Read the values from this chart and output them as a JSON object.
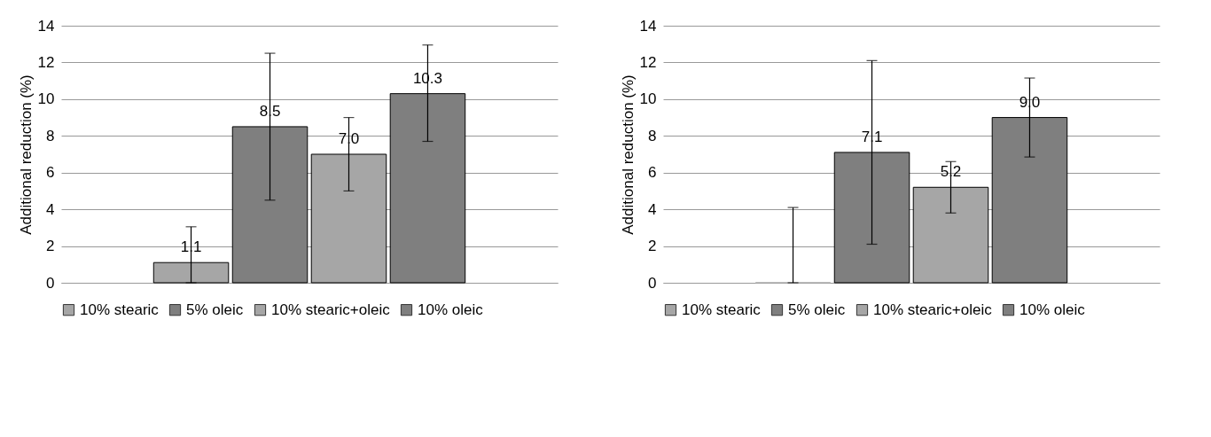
{
  "chart_data": [
    {
      "type": "bar",
      "ylabel": "Additional reduction (%)",
      "categories": [
        null
      ],
      "ylim": [
        0,
        14
      ],
      "yticks": [
        0,
        2,
        4,
        6,
        8,
        10,
        12,
        14
      ],
      "grid": "y",
      "legend": "bottom",
      "series": [
        {
          "name": "10% stearic",
          "color": "#a6a6a6",
          "values": [
            1.1
          ],
          "errors": [
            [
              0,
              3.05
            ]
          ],
          "value_labels": [
            "1.1"
          ]
        },
        {
          "name": "5% oleic",
          "color": "#7f7f7f",
          "values": [
            8.5
          ],
          "errors": [
            [
              4.5,
              12.5
            ]
          ],
          "value_labels": [
            "8.5"
          ]
        },
        {
          "name": "10% stearic+oleic",
          "color": "#a6a6a6",
          "values": [
            7.0
          ],
          "errors": [
            [
              5.0,
              9.0
            ]
          ],
          "value_labels": [
            "7.0"
          ]
        },
        {
          "name": "10% oleic",
          "color": "#7f7f7f",
          "values": [
            10.3
          ],
          "errors": [
            [
              7.7,
              12.95
            ]
          ],
          "value_labels": [
            "10.3"
          ]
        }
      ]
    },
    {
      "type": "bar",
      "ylabel": "Additional reduction (%)",
      "categories": [
        null
      ],
      "ylim": [
        0,
        14
      ],
      "yticks": [
        0,
        2,
        4,
        6,
        8,
        10,
        12,
        14
      ],
      "grid": "y",
      "legend": "bottom",
      "series": [
        {
          "name": "10% stearic",
          "color": "#a6a6a6",
          "values": [
            0
          ],
          "errors": [
            [
              0,
              4.1
            ]
          ],
          "value_labels": [
            null
          ]
        },
        {
          "name": "5% oleic",
          "color": "#7f7f7f",
          "values": [
            7.1
          ],
          "errors": [
            [
              2.1,
              12.1
            ]
          ],
          "value_labels": [
            "7.1"
          ]
        },
        {
          "name": "10% stearic+oleic",
          "color": "#a6a6a6",
          "values": [
            5.2
          ],
          "errors": [
            [
              3.8,
              6.6
            ]
          ],
          "value_labels": [
            "5.2"
          ]
        },
        {
          "name": "10% oleic",
          "color": "#7f7f7f",
          "values": [
            9.0
          ],
          "errors": [
            [
              6.85,
              11.15
            ]
          ],
          "value_labels": [
            "9.0"
          ]
        }
      ]
    }
  ]
}
